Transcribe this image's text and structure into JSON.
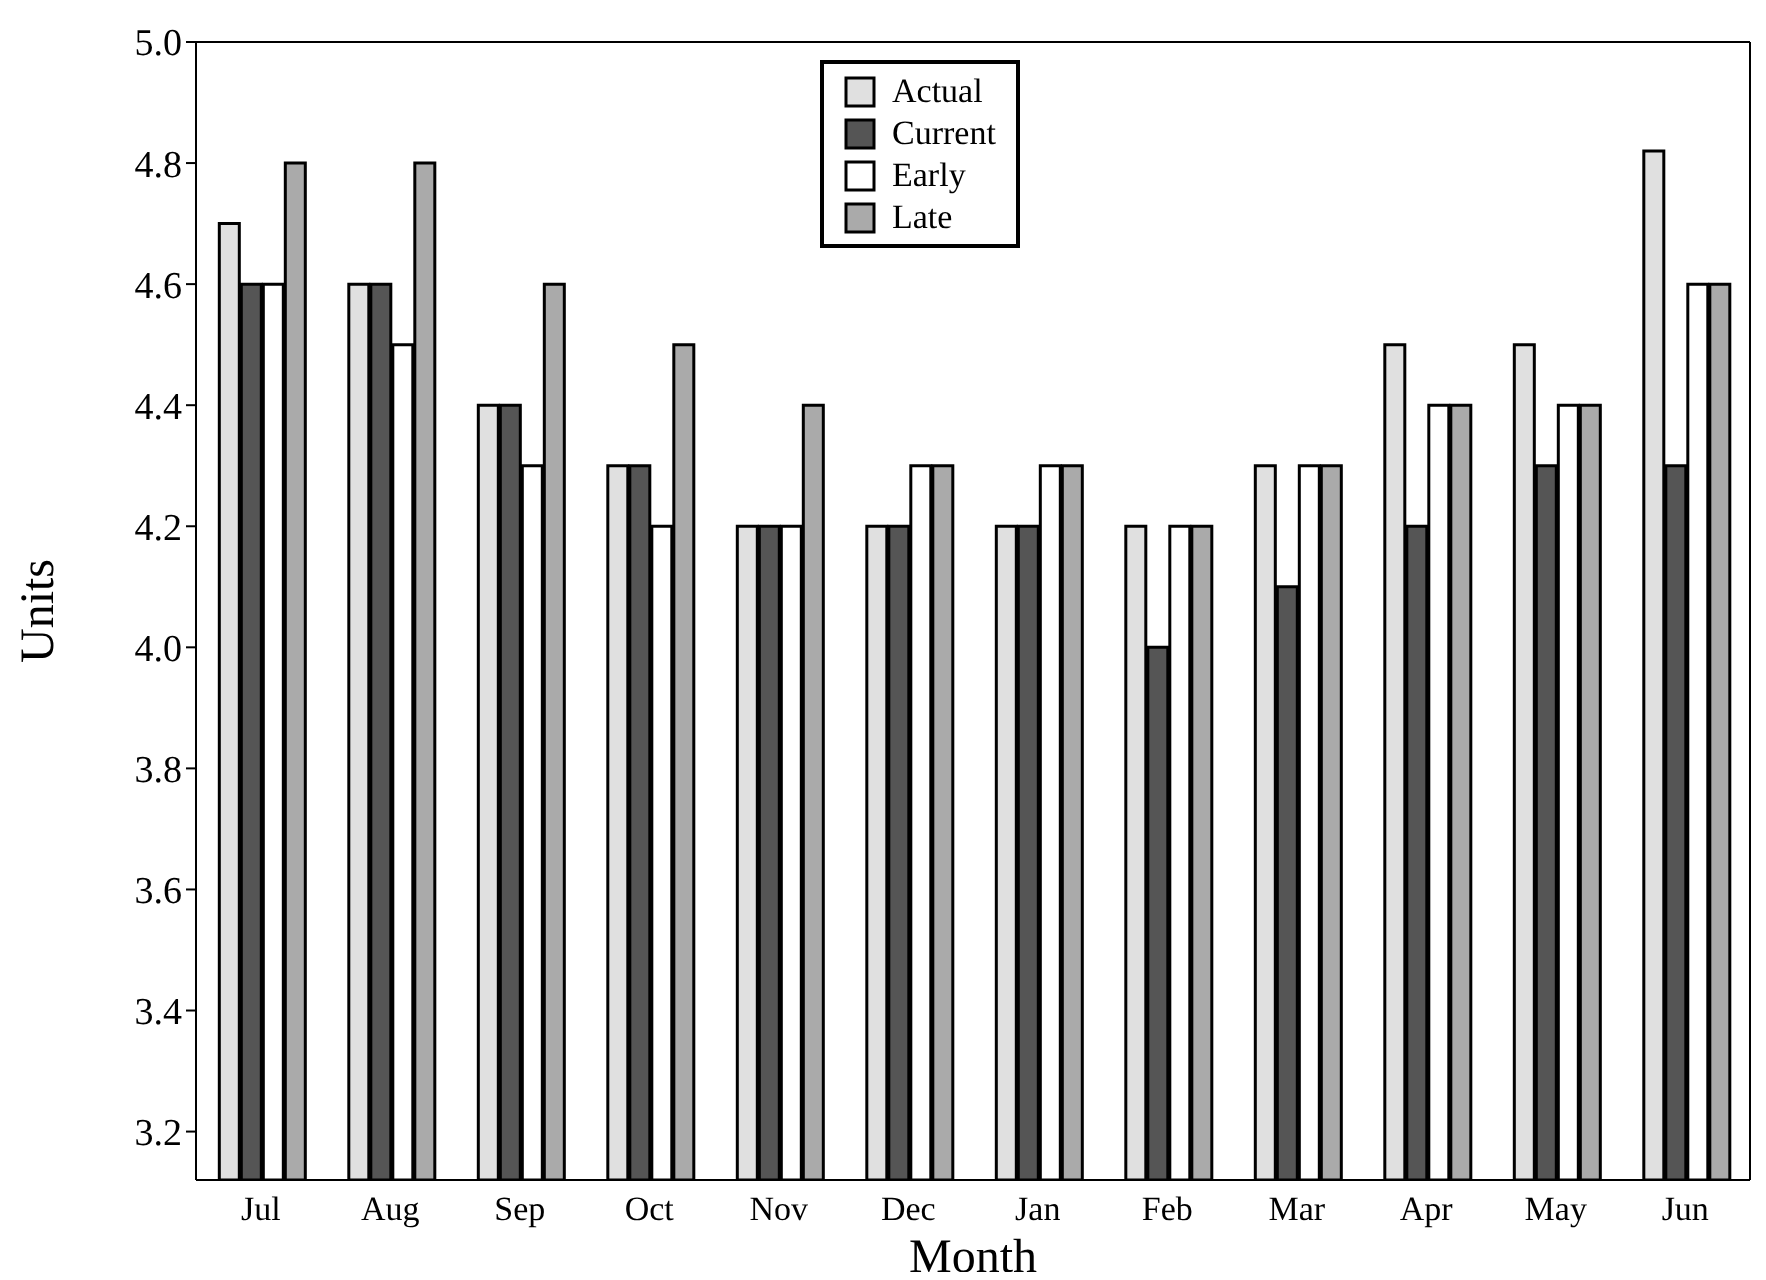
{
  "chart_data": {
    "type": "bar",
    "xlabel": "Month",
    "ylabel": "Units",
    "categories": [
      "Jul",
      "Aug",
      "Sep",
      "Oct",
      "Nov",
      "Dec",
      "Jan",
      "Feb",
      "Mar",
      "Apr",
      "May",
      "Jun"
    ],
    "series": [
      {
        "name": "Actual",
        "color": "#e0e0e0",
        "values": [
          4.7,
          4.6,
          4.4,
          4.3,
          4.2,
          4.2,
          4.2,
          4.2,
          4.3,
          4.5,
          4.5,
          4.82
        ]
      },
      {
        "name": "Current",
        "color": "#555555",
        "values": [
          4.6,
          4.6,
          4.4,
          4.3,
          4.2,
          4.2,
          4.2,
          4.0,
          4.1,
          4.2,
          4.3,
          4.3
        ]
      },
      {
        "name": "Early",
        "color": "#ffffff",
        "values": [
          4.6,
          4.5,
          4.3,
          4.2,
          4.2,
          4.3,
          4.3,
          4.2,
          4.3,
          4.4,
          4.4,
          4.6
        ]
      },
      {
        "name": "Late",
        "color": "#aaaaaa",
        "values": [
          4.8,
          4.8,
          4.6,
          4.5,
          4.4,
          4.3,
          4.3,
          4.2,
          4.3,
          4.4,
          4.4,
          4.6
        ]
      }
    ],
    "ylim": [
      3.12,
      5.0
    ],
    "yticks": [
      3.2,
      3.4,
      3.6,
      3.8,
      {
        "value": 4.0,
        "label": "4.0"
      },
      4.2,
      4.4,
      4.6,
      4.8,
      {
        "value": 5.0,
        "label": "5.0"
      }
    ],
    "grid": false,
    "legend": "top"
  }
}
